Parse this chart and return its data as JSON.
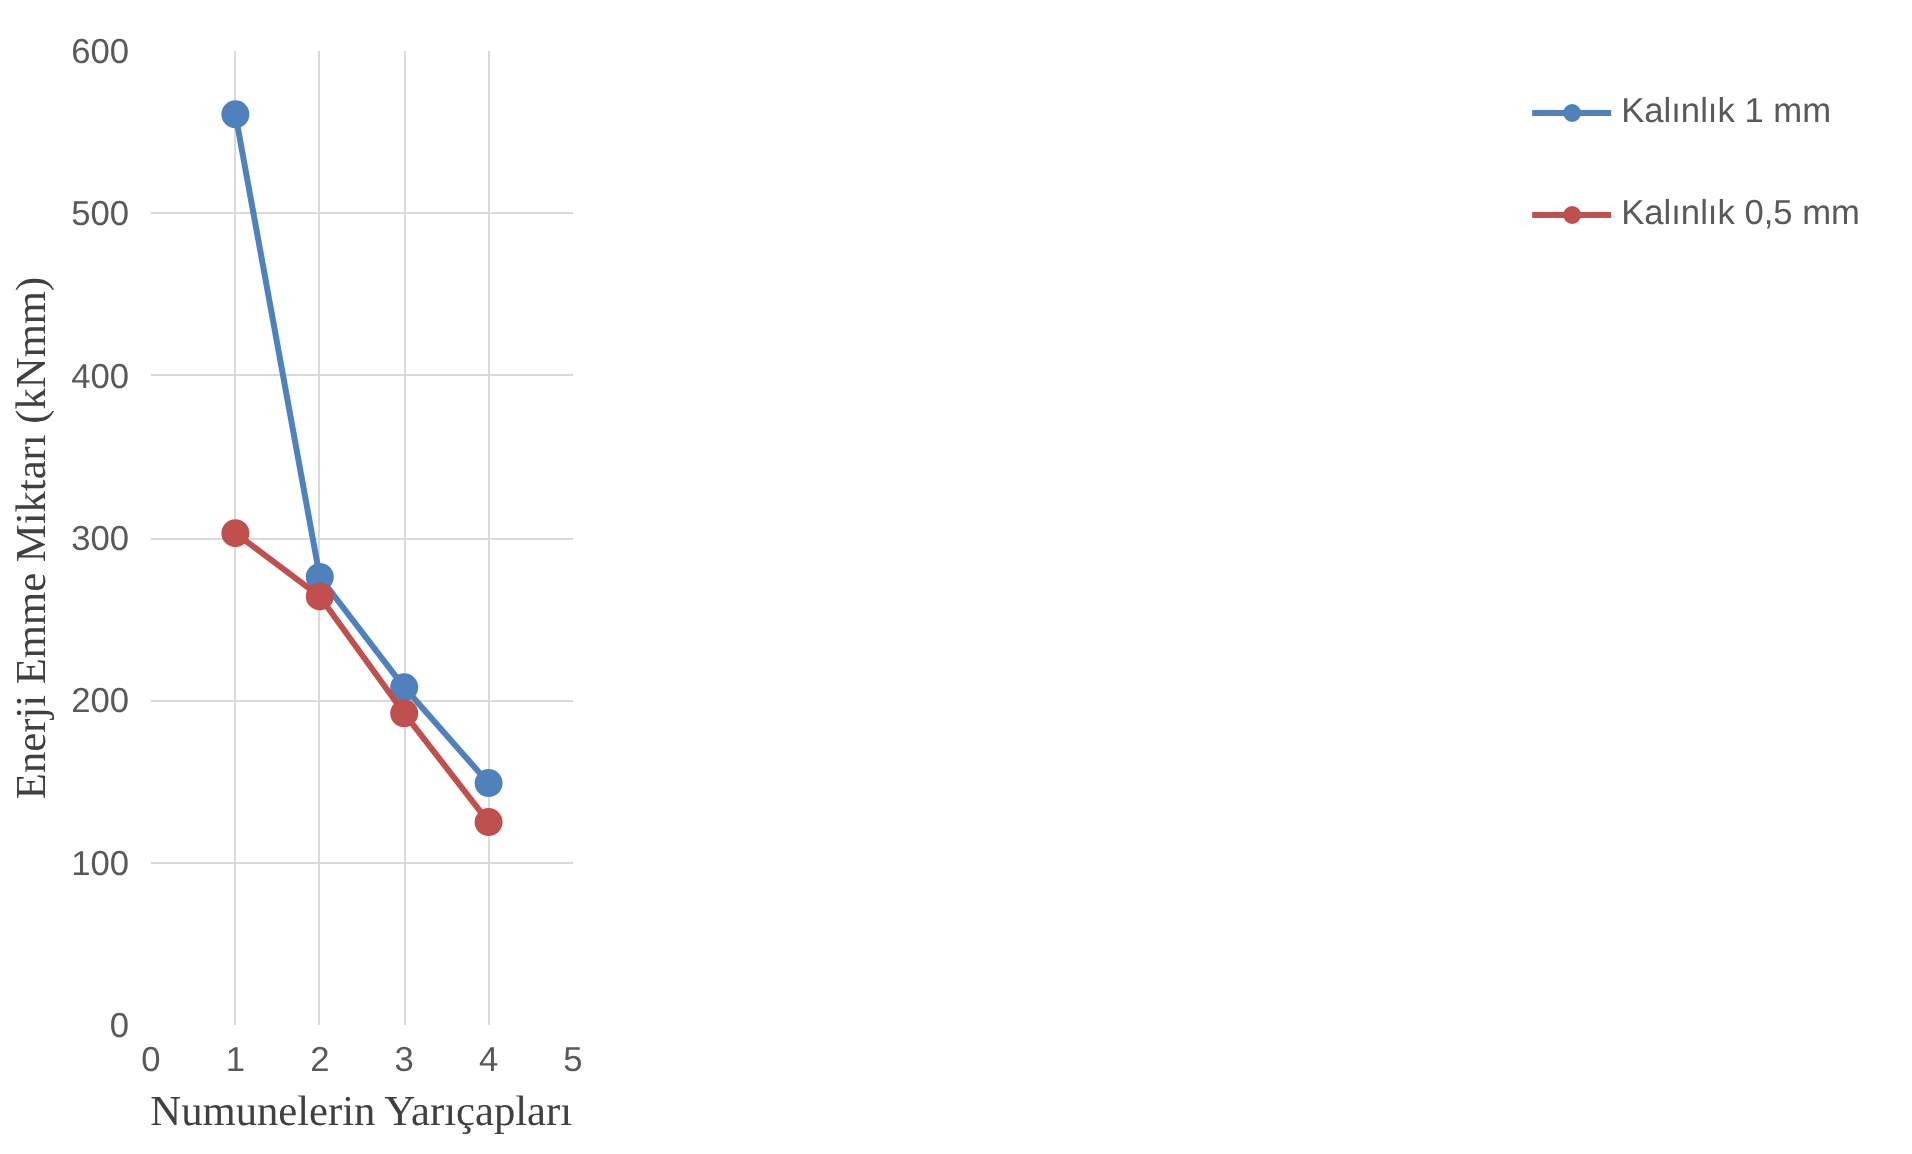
{
  "chart_data": {
    "type": "line",
    "xlabel": "Numunelerin Yarıçapları",
    "ylabel": "Enerji Emme Miktarı (kNmm)",
    "x": [
      1,
      2,
      3,
      4
    ],
    "series": [
      {
        "name": "Kalınlık 1 mm",
        "color": "#4f81bd",
        "values": [
          561,
          276,
          208,
          149
        ]
      },
      {
        "name": "Kalınlık 0,5 mm",
        "color": "#c0504d",
        "values": [
          303,
          264,
          192,
          125
        ]
      }
    ],
    "xlim": [
      0,
      5
    ],
    "xticks": [
      0,
      1,
      2,
      3,
      4,
      5
    ],
    "ylim": [
      0,
      600
    ],
    "yticks": [
      0,
      100,
      200,
      300,
      400,
      500,
      600
    ],
    "grid": true,
    "legend": "right",
    "marker": "circle",
    "line_style": "solid"
  }
}
